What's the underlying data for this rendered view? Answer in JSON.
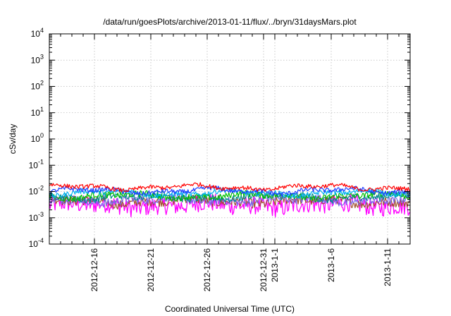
{
  "chart_data": {
    "type": "line",
    "title": "/data/run/goesPlots/archive/2013-01-11/flux/../bryn/31daysMars.plot",
    "xlabel": "Coordinated Universal Time (UTC)",
    "ylabel": "cSv/day",
    "y_scale": "log",
    "ylim_exponents": [
      -4,
      4
    ],
    "y_ticks": [
      {
        "base": "10",
        "exp": "-4"
      },
      {
        "base": "10",
        "exp": "-3"
      },
      {
        "base": "10",
        "exp": "-2"
      },
      {
        "base": "10",
        "exp": "-1"
      },
      {
        "base": "10",
        "exp": "0"
      },
      {
        "base": "10",
        "exp": "1"
      },
      {
        "base": "10",
        "exp": "2"
      },
      {
        "base": "10",
        "exp": "3"
      },
      {
        "base": "10",
        "exp": "4"
      }
    ],
    "xlim": [
      "2012-12-12",
      "2013-01-13"
    ],
    "x_ticks": [
      {
        "date": "2012-12-16",
        "label": "2012-12-16"
      },
      {
        "date": "2012-12-21",
        "label": "2012-12-21"
      },
      {
        "date": "2012-12-26",
        "label": "2012-12-26"
      },
      {
        "date": "2012-12-31",
        "label": "2012-12-31"
      },
      {
        "date": "2013-01-01",
        "label": "2013-1-1"
      },
      {
        "date": "2013-01-06",
        "label": "2013-1-6"
      },
      {
        "date": "2013-01-11",
        "label": "2013-1-11"
      }
    ],
    "grid": true,
    "series": [
      {
        "color": "#ff00ff",
        "level": 0.003,
        "spread": 0.35
      },
      {
        "color": "#a0522d",
        "level": 0.0042,
        "spread": 0.18
      },
      {
        "color": "#7b68ee",
        "level": 0.0047,
        "spread": 0.16
      },
      {
        "color": "#008b8b",
        "level": 0.0062,
        "spread": 0.14
      },
      {
        "color": "#00c000",
        "level": 0.0068,
        "spread": 0.12
      },
      {
        "color": "#00b0f0",
        "level": 0.0087,
        "spread": 0.1
      },
      {
        "color": "#1e3cff",
        "level": 0.0105,
        "spread": 0.09
      },
      {
        "color": "#ff0000",
        "level": 0.0145,
        "spread": 0.08
      }
    ]
  }
}
